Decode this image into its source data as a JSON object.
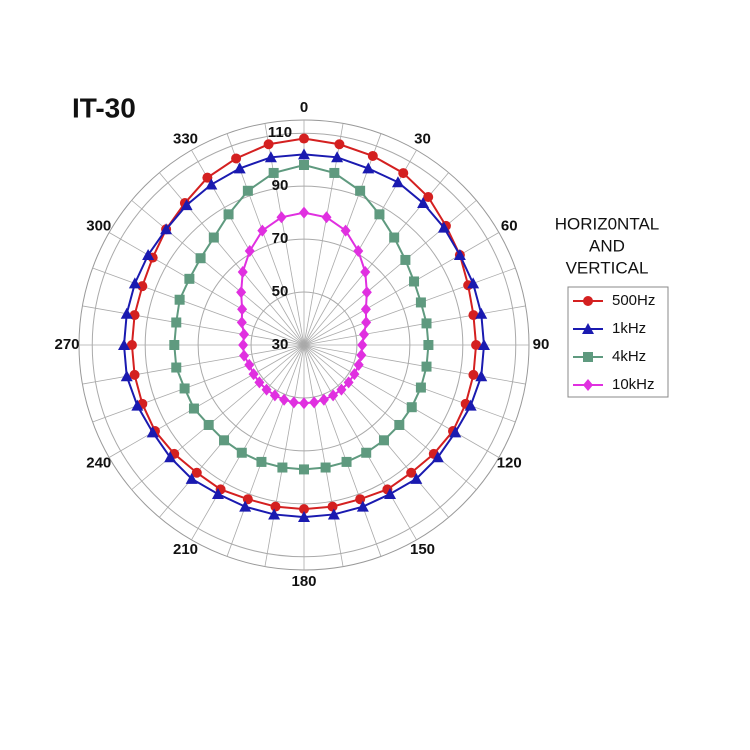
{
  "chart_data": {
    "type": "polar",
    "title": "IT-30",
    "legend_title": [
      "HORIZ0NTAL",
      "AND",
      "VERTICAL"
    ],
    "theta": [
      0,
      10,
      20,
      30,
      40,
      50,
      60,
      70,
      80,
      90,
      100,
      110,
      120,
      130,
      140,
      150,
      160,
      170,
      180,
      190,
      200,
      210,
      220,
      230,
      240,
      250,
      260,
      270,
      280,
      290,
      300,
      310,
      320,
      330,
      340,
      350
    ],
    "thetaticks": [
      0,
      30,
      60,
      90,
      120,
      150,
      180,
      210,
      240,
      270,
      300,
      330
    ],
    "ylim": [
      30,
      115
    ],
    "yticks": [
      30,
      50,
      70,
      90,
      110
    ],
    "grid": true,
    "series": [
      {
        "name": "500Hz",
        "color": "#d42020",
        "marker": "circle",
        "values": [
          108,
          107,
          106,
          105,
          103,
          100,
          98,
          96,
          95,
          95,
          95,
          95,
          95,
          94,
          93,
          93,
          92,
          92,
          92,
          92,
          92,
          93,
          93,
          94,
          95,
          95,
          95,
          95,
          95,
          95,
          96,
          98,
          100,
          103,
          105,
          107
        ]
      },
      {
        "name": "1kHz",
        "color": "#1a1ab0",
        "marker": "triangle",
        "values": [
          102,
          102,
          101,
          101,
          100,
          99,
          98,
          98,
          98,
          98,
          98,
          97,
          96,
          96,
          96,
          95,
          95,
          95,
          95,
          95,
          95,
          95,
          96,
          96,
          96,
          97,
          98,
          98,
          98,
          98,
          98,
          98,
          99,
          100,
          101,
          102
        ]
      },
      {
        "name": "4kHz",
        "color": "#5f9a7f",
        "marker": "square",
        "values": [
          98,
          96,
          92,
          87,
          83,
          80,
          78,
          77,
          77,
          77,
          77,
          77,
          77,
          77,
          77,
          77,
          77,
          77,
          77,
          77,
          77,
          77,
          77,
          77,
          78,
          78,
          79,
          79,
          79,
          80,
          80,
          81,
          83,
          87,
          92,
          96
        ]
      },
      {
        "name": "10kHz",
        "color": "#e030e0",
        "marker": "diamond",
        "values": [
          80,
          79,
          76,
          71,
          66,
          61,
          57,
          55,
          53,
          52,
          52,
          52,
          52,
          52,
          52,
          52,
          52,
          52,
          52,
          52,
          52,
          52,
          52,
          52,
          52,
          52,
          53,
          53,
          53,
          55,
          57,
          61,
          66,
          71,
          76,
          79
        ]
      }
    ]
  }
}
